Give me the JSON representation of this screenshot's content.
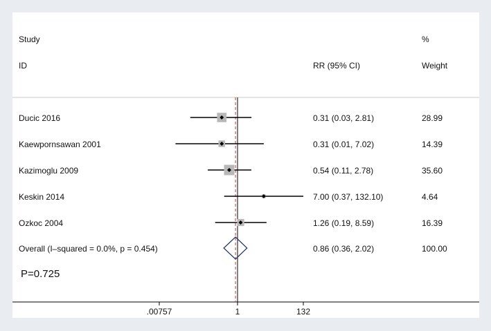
{
  "chart_data": {
    "type": "forest",
    "header": {
      "study_line1": "Study",
      "study_line2": "ID",
      "effect": "RR (95% CI)",
      "weight_line1": "%",
      "weight_line2": "Weight"
    },
    "studies": [
      {
        "id": "Ducic 2016",
        "rr": 0.31,
        "lo": 0.03,
        "hi": 2.81,
        "ci_text": "0.31 (0.03, 2.81)",
        "weight": 28.99,
        "weight_text": "28.99"
      },
      {
        "id": "Kaewpornsawan 2001",
        "rr": 0.31,
        "lo": 0.01,
        "hi": 7.02,
        "ci_text": "0.31 (0.01, 7.02)",
        "weight": 14.39,
        "weight_text": "14.39"
      },
      {
        "id": "Kazimoglu 2009",
        "rr": 0.54,
        "lo": 0.11,
        "hi": 2.78,
        "ci_text": "0.54 (0.11, 2.78)",
        "weight": 35.6,
        "weight_text": "35.60"
      },
      {
        "id": "Keskin 2014",
        "rr": 7.0,
        "lo": 0.37,
        "hi": 132.1,
        "ci_text": "7.00 (0.37, 132.10)",
        "weight": 4.64,
        "weight_text": "4.64"
      },
      {
        "id": "Ozkoc 2004",
        "rr": 1.26,
        "lo": 0.19,
        "hi": 8.59,
        "ci_text": "1.26 (0.19, 8.59)",
        "weight": 16.39,
        "weight_text": "16.39"
      }
    ],
    "overall": {
      "label": "Overall  (I–squared = 0.0%, p = 0.454)",
      "rr": 0.86,
      "lo": 0.36,
      "hi": 2.02,
      "ci_text": "0.86 (0.36, 2.02)",
      "weight_text": "100.00"
    },
    "annotation": "P=0.725",
    "x_axis": {
      "scale": "log",
      "range": [
        0.00757,
        132
      ],
      "ticks": [
        {
          "value": 0.00757,
          "label": ".00757"
        },
        {
          "value": 1,
          "label": "1"
        },
        {
          "value": 132,
          "label": "132"
        }
      ],
      "null_line": 1
    },
    "colors": {
      "line": "#000000",
      "box": "#b8b8b8",
      "diamond": "#2b3a6b",
      "overall_line": "#c0392b",
      "divider": "#c8c8c8"
    }
  }
}
